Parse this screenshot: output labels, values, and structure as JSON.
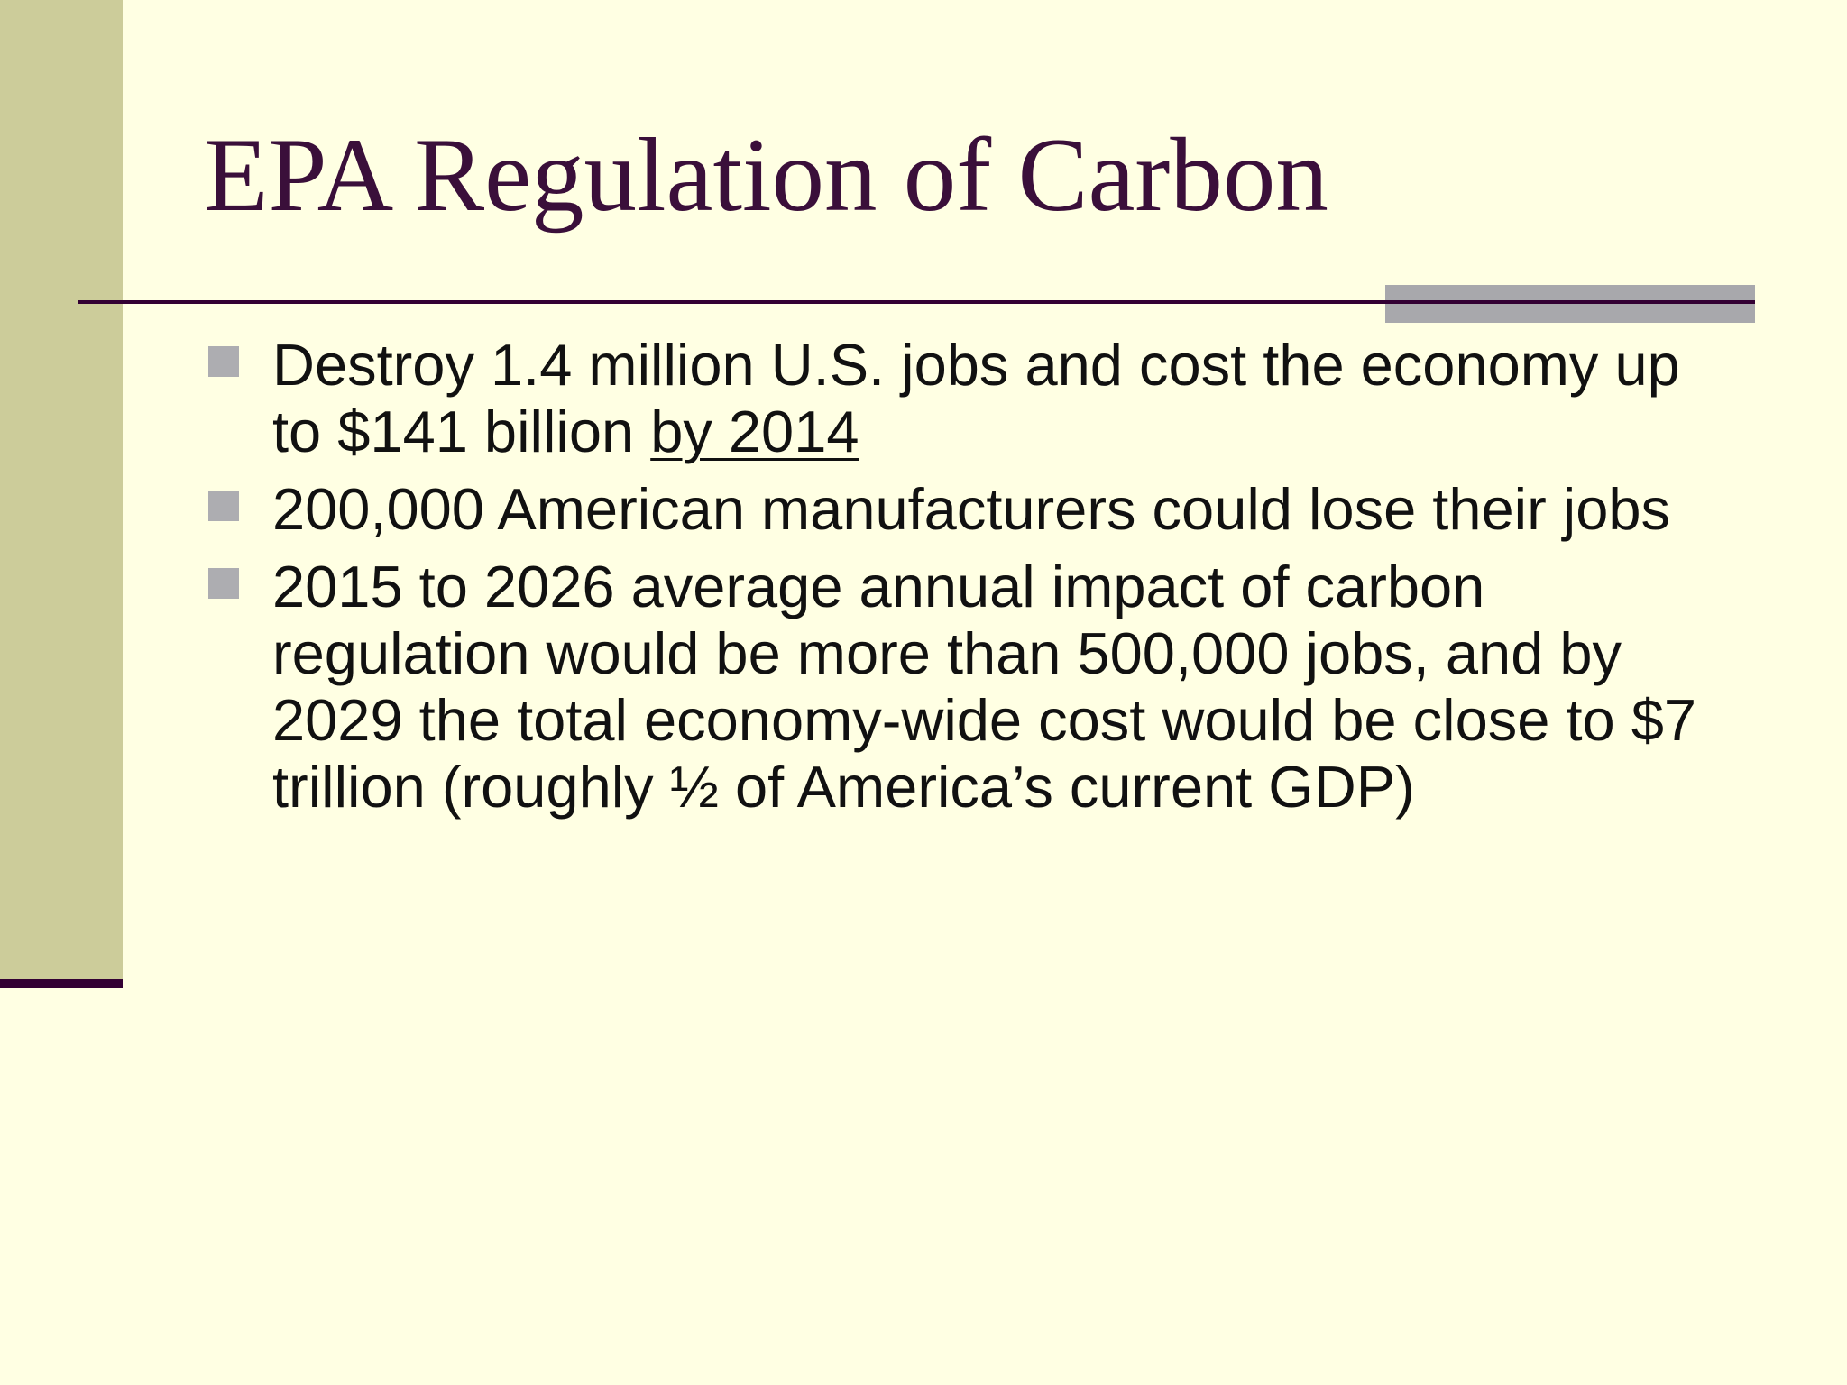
{
  "slide": {
    "title": "EPA Regulation of Carbon",
    "bullets": [
      {
        "text": "Destroy 1.4 million U.S. jobs and cost the economy up to $141 billion ",
        "underlined": "by 2014"
      },
      {
        "text": "200,000 American manufacturers could lose their jobs"
      },
      {
        "text": "2015 to 2026 average annual impact of carbon regulation would be more than 500,000 jobs, and by 2029 the total economy-wide cost would be close to $7 trillion (roughly ½ of America’s current GDP)"
      }
    ]
  },
  "colors": {
    "background": "#FFFFE3",
    "left_bar": "#CCCC9A",
    "title": "#3A0F3A",
    "rule": "#330033",
    "accent_gray": "#A8A8AC",
    "bullet_marker": "#ADADB1",
    "body_text": "#111111"
  },
  "icons": {
    "bullet": "square-bullet-icon"
  }
}
